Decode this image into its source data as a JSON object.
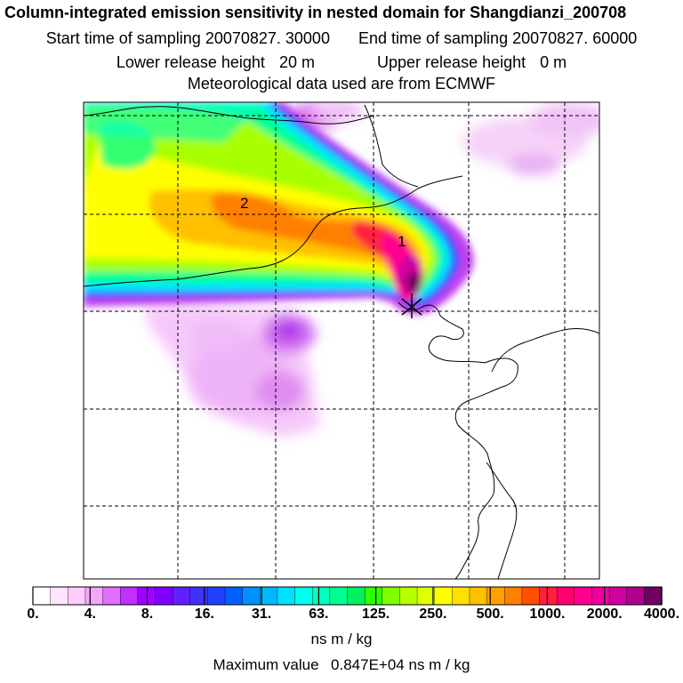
{
  "header": {
    "title": "Column-integrated emission sensitivity in nested domain for Shangdianzi_200708",
    "start_label": "Start time of sampling",
    "start_value": "20070827. 30000",
    "end_label": "End time of sampling",
    "end_value": "20070827. 60000",
    "lower_label": "Lower release height",
    "lower_value": "20 m",
    "upper_label": "Upper release height",
    "upper_value": "0 m",
    "met_line": "Meteorological data used are from ECMWF"
  },
  "map": {
    "markers": [
      {
        "label": "1"
      },
      {
        "label": "2"
      }
    ]
  },
  "legend": {
    "ticks": [
      "0.",
      "4.",
      "8.",
      "16.",
      "31.",
      "63.",
      "125.",
      "250.",
      "500.",
      "1000.",
      "2000.",
      "4000."
    ],
    "colors": [
      "#ffffff",
      "#ffe6ff",
      "#ffccff",
      "#f5a5ff",
      "#e070ff",
      "#c030ff",
      "#a000ff",
      "#8000ff",
      "#6020ff",
      "#4030ff",
      "#2040ff",
      "#0060ff",
      "#0090ff",
      "#00b8ff",
      "#00e0ff",
      "#00ffee",
      "#00ffc0",
      "#00ff90",
      "#00f060",
      "#30ff00",
      "#80ff00",
      "#b8ff00",
      "#e0ff00",
      "#ffff00",
      "#ffe000",
      "#ffc000",
      "#ffa000",
      "#ff8000",
      "#ff5000",
      "#ff2040",
      "#ff0070",
      "#ff0090",
      "#f000a0",
      "#d000a0",
      "#b00090",
      "#700060"
    ],
    "units": "ns m / kg",
    "max_label": "Maximum value",
    "max_value": "0.847E+04 ns m / kg"
  }
}
